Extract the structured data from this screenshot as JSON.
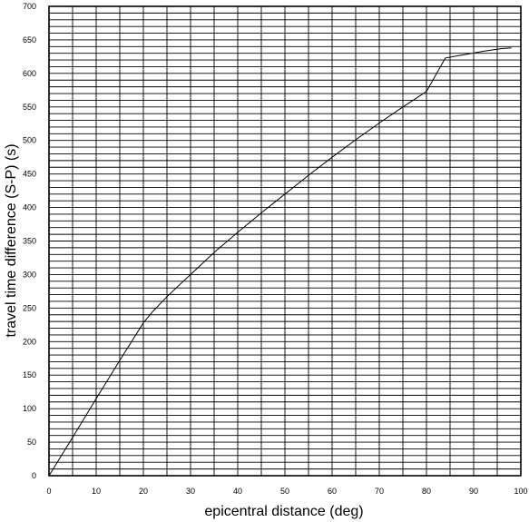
{
  "chart_data": {
    "type": "line",
    "title": "",
    "xlabel": "epicentral distance (deg)",
    "ylabel": "travel time difference (S-P) (s)",
    "xlim": [
      0,
      100
    ],
    "ylim": [
      0,
      700
    ],
    "x_ticks": [
      0,
      10,
      20,
      30,
      40,
      50,
      60,
      70,
      80,
      90,
      100
    ],
    "y_ticks": [
      0,
      50,
      100,
      150,
      200,
      250,
      300,
      350,
      400,
      450,
      500,
      550,
      600,
      650,
      700
    ],
    "x_minor_step": 5,
    "y_minor_step": 10,
    "grid": true,
    "series": [
      {
        "x": [
          0,
          5,
          10,
          15,
          20,
          22,
          25,
          30,
          35,
          40,
          45,
          50,
          55,
          60,
          65,
          70,
          75,
          80,
          84,
          88,
          92,
          96,
          98
        ],
        "y": [
          0,
          57,
          115,
          172,
          228,
          245,
          267,
          300,
          333,
          363,
          392,
          420,
          448,
          475,
          501,
          526,
          550,
          573,
          623,
          628,
          633,
          637,
          638
        ]
      }
    ]
  }
}
